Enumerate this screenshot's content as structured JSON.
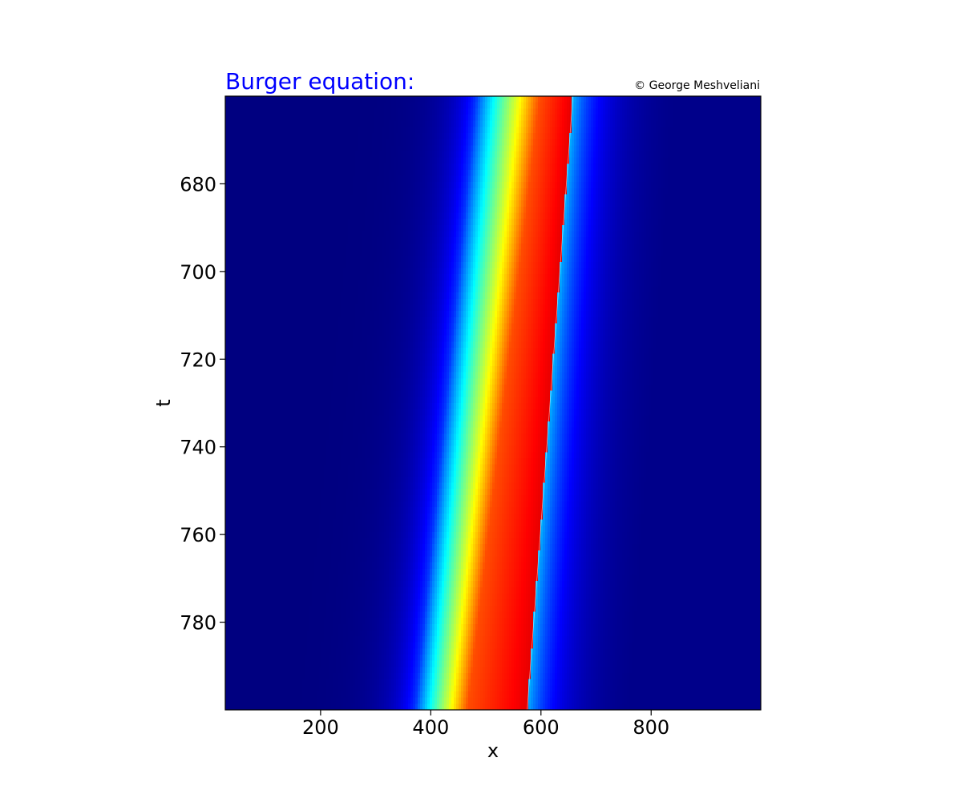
{
  "chart_data": {
    "type": "heatmap",
    "title": "Burger equation:",
    "title_color": "#0000ff",
    "credit": "© George Meshveliani",
    "xlabel": "x",
    "ylabel": "t",
    "xlim": [
      27,
      999
    ],
    "ylim": [
      660,
      800
    ],
    "y_inverted": true,
    "x_ticks": [
      200,
      400,
      600,
      800
    ],
    "y_ticks": [
      680,
      700,
      720,
      740,
      760,
      780
    ],
    "colormap": "jet",
    "background_color": "#00007f",
    "grid": false,
    "wave": {
      "shock_front": [
        {
          "t": 660,
          "x": 658
        },
        {
          "t": 800,
          "x": 575
        }
      ],
      "peak_start": [
        {
          "t": 660,
          "x": 598
        },
        {
          "t": 800,
          "x": 467
        }
      ],
      "tail_start": [
        {
          "t": 660,
          "x": 483
        },
        {
          "t": 800,
          "x": 372
        }
      ],
      "pulse_center_t800": 510,
      "pulse_halfwidth_t800": 150,
      "front_decay_width": 55
    }
  }
}
